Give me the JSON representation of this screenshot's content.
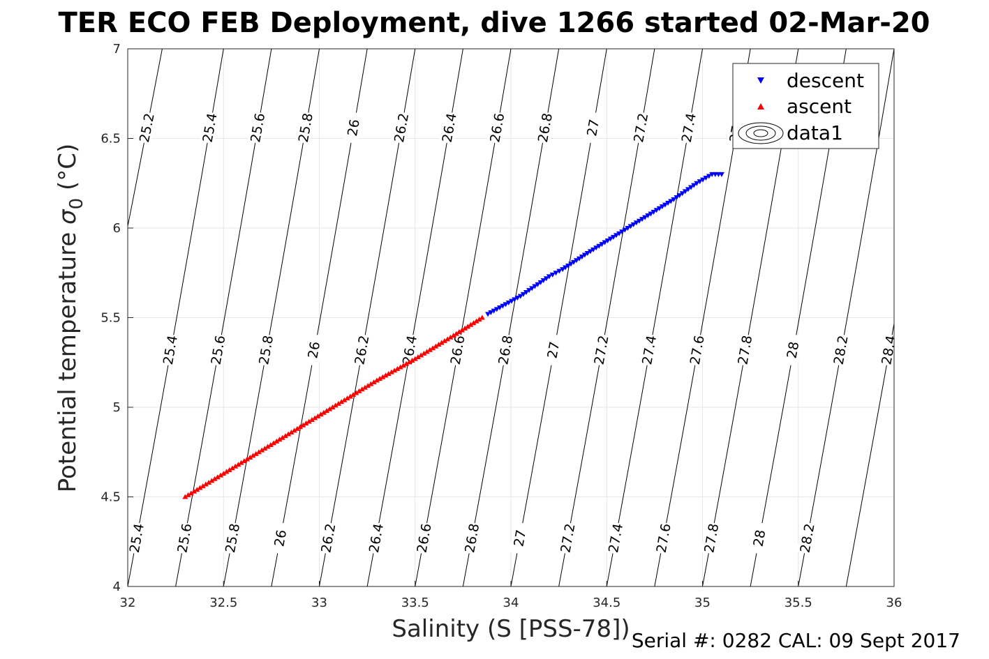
{
  "chart_data": {
    "type": "scatter",
    "title": "TER ECO FEB Deployment, dive 1266 started 02-Mar-20",
    "xlabel": "Salinity (S [PSS-78])",
    "ylabel_main": "Potential temperature ",
    "ylabel_symbol": "σ",
    "ylabel_sub": "0",
    "ylabel_unit": " (°C)",
    "footer": "Serial #: 0282  CAL: 09 Sept 2017",
    "xlim": [
      32,
      36
    ],
    "ylim": [
      4,
      7
    ],
    "x_ticks": [
      "32",
      "32.5",
      "33",
      "33.5",
      "34",
      "34.5",
      "35",
      "35.5",
      "36"
    ],
    "y_ticks": [
      "4",
      "4.5",
      "5",
      "5.5",
      "6",
      "6.5",
      "7"
    ],
    "grid": true,
    "legend_position": "top-right",
    "legend": [
      "descent",
      "ascent",
      "data1"
    ],
    "colors": {
      "descent": "#0000ff",
      "ascent": "#ff0000",
      "contour": "#000000",
      "grid": "#e6e6e6"
    },
    "series": [
      {
        "name": "descent",
        "marker": "triangle-down",
        "color": "#0000ff",
        "x": [
          33.88,
          34.05,
          34.2,
          34.27,
          34.4,
          34.55,
          34.7,
          34.85,
          34.97,
          35.05,
          35.1
        ],
        "y": [
          5.52,
          5.62,
          5.73,
          5.77,
          5.86,
          5.96,
          6.06,
          6.16,
          6.25,
          6.3,
          6.3
        ]
      },
      {
        "name": "ascent",
        "marker": "triangle-up",
        "color": "#ff0000",
        "x": [
          32.3,
          32.5,
          32.7,
          32.9,
          33.1,
          33.3,
          33.5,
          33.7,
          33.85
        ],
        "y": [
          4.5,
          4.63,
          4.76,
          4.89,
          5.02,
          5.15,
          5.27,
          5.4,
          5.5
        ]
      }
    ],
    "contours": [
      {
        "level": "25.2",
        "x_at_y4": 31.62,
        "x_at_y7": 32.18
      },
      {
        "level": "25.4",
        "x_at_y4": 32.0,
        "x_at_y7": 32.5
      },
      {
        "level": "25.6",
        "x_at_y4": 32.25,
        "x_at_y7": 32.75
      },
      {
        "level": "25.8",
        "x_at_y4": 32.5,
        "x_at_y7": 33.0
      },
      {
        "level": "26",
        "x_at_y4": 32.75,
        "x_at_y7": 33.25
      },
      {
        "level": "26.2",
        "x_at_y4": 33.0,
        "x_at_y7": 33.5
      },
      {
        "level": "26.4",
        "x_at_y4": 33.25,
        "x_at_y7": 33.75
      },
      {
        "level": "26.6",
        "x_at_y4": 33.5,
        "x_at_y7": 34.0
      },
      {
        "level": "26.8",
        "x_at_y4": 33.75,
        "x_at_y7": 34.25
      },
      {
        "level": "27",
        "x_at_y4": 34.0,
        "x_at_y7": 34.5
      },
      {
        "level": "27.2",
        "x_at_y4": 34.25,
        "x_at_y7": 34.75
      },
      {
        "level": "27.4",
        "x_at_y4": 34.5,
        "x_at_y7": 35.0
      },
      {
        "level": "27.6",
        "x_at_y4": 34.75,
        "x_at_y7": 35.25
      },
      {
        "level": "27.8",
        "x_at_y4": 35.0,
        "x_at_y7": 35.5
      },
      {
        "level": "28",
        "x_at_y4": 35.25,
        "x_at_y7": 35.75
      },
      {
        "level": "28.2",
        "x_at_y4": 35.5,
        "x_at_y7": 36.0
      },
      {
        "level": "28.4",
        "x_at_y4": 35.75,
        "x_at_y7": 36.25
      }
    ],
    "contour_labels_top": [
      "25.2",
      "25.4",
      "25.6",
      "25.8",
      "26",
      "26.2",
      "26.4",
      "26.6",
      "26.8",
      "27",
      "27.2",
      "27.4",
      "27.6"
    ],
    "contour_labels_mid": [
      "25.4",
      "25.6",
      "25.8",
      "26",
      "26.2",
      "26.4",
      "26.6",
      "26.8",
      "27",
      "27.2",
      "27.4",
      "27.6",
      "27.8",
      "28",
      "28.2",
      "28.4"
    ],
    "contour_labels_bottom": [
      "25.4",
      "25.6",
      "25.8",
      "26",
      "26.2",
      "26.4",
      "26.6",
      "26.8",
      "27",
      "27.2",
      "27.4",
      "27.6",
      "27.8",
      "28",
      "28.2"
    ]
  }
}
